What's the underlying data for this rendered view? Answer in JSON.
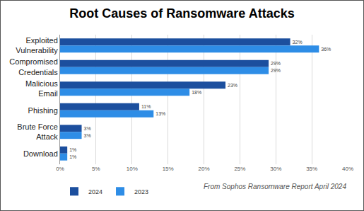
{
  "chart_data": {
    "type": "bar",
    "orientation": "horizontal",
    "title": "Root Causes of Ransomware Attacks",
    "categories": [
      "Exploited Vulnerability",
      "Compromised Credentials",
      "Malicious Email",
      "Phishing",
      "Brute Force Attack",
      "Download"
    ],
    "series": [
      {
        "name": "2024",
        "color": "#1c4f9e",
        "values": [
          32,
          29,
          23,
          11,
          3,
          1
        ],
        "value_labels": [
          "32%",
          "29%",
          "23%",
          "11%",
          "3%",
          "1%"
        ]
      },
      {
        "name": "2023",
        "color": "#2e8de6",
        "values": [
          36,
          29,
          18,
          13,
          3,
          1
        ],
        "value_labels": [
          "36%",
          "29%",
          "18%",
          "13%",
          "3%",
          "1%"
        ]
      }
    ],
    "xlim": [
      0,
      40
    ],
    "xticks": [
      {
        "value": 0,
        "label": "0%"
      },
      {
        "value": 5,
        "label": "5%"
      },
      {
        "value": 10,
        "label": "10%"
      },
      {
        "value": 15,
        "label": "15%"
      },
      {
        "value": 20,
        "label": "20%"
      },
      {
        "value": 25,
        "label": "25%"
      },
      {
        "value": 30,
        "label": "30%"
      },
      {
        "value": 35,
        "label": "35%"
      },
      {
        "value": 40,
        "label": "40%"
      }
    ],
    "grid": true,
    "data_labels": true,
    "legend": "bottom left",
    "annotations": [
      "From Sophos Ransomware Report April 2024"
    ]
  }
}
